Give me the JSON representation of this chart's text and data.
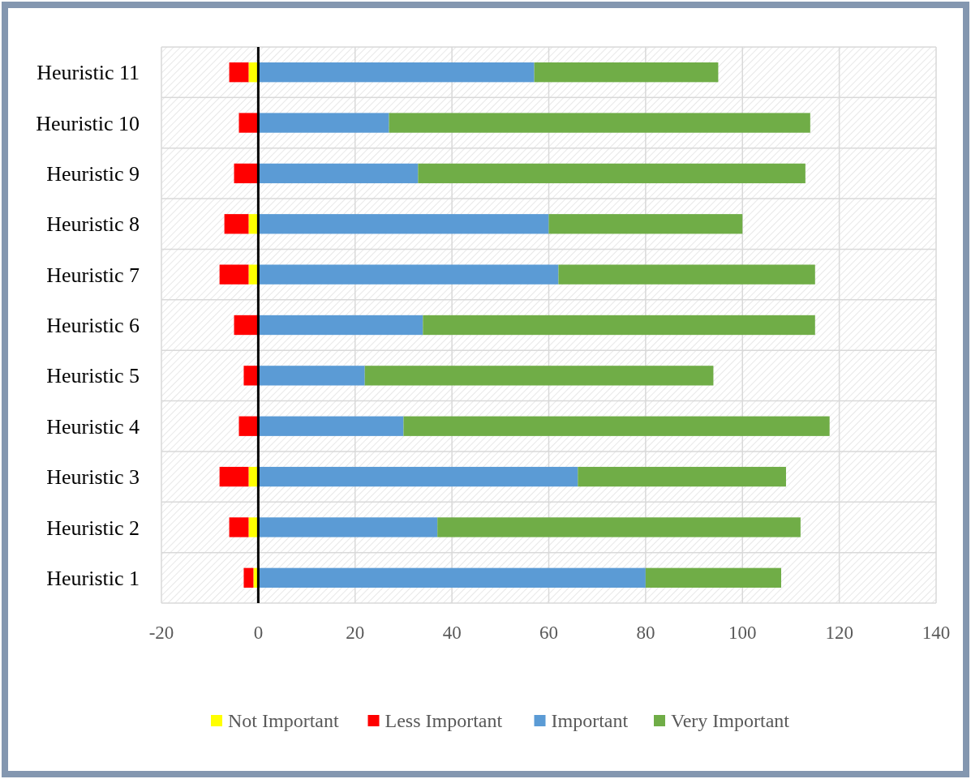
{
  "chart_data": {
    "type": "bar",
    "orientation": "horizontal",
    "stacked": true,
    "categories": [
      "Heuristic 11",
      "Heuristic 10",
      "Heuristic 9",
      "Heuristic 8",
      "Heuristic 7",
      "Heuristic 6",
      "Heuristic 5",
      "Heuristic 4",
      "Heuristic 3",
      "Heuristic 2",
      "Heuristic 1"
    ],
    "series": [
      {
        "name": "Not Important",
        "color": "#ffff00",
        "values": [
          -2,
          0,
          0,
          -2,
          -2,
          0,
          0,
          0,
          -2,
          -2,
          -1
        ]
      },
      {
        "name": "Less Important",
        "color": "#ff0000",
        "values": [
          -4,
          -4,
          -5,
          -5,
          -6,
          -5,
          -3,
          -4,
          -6,
          -4,
          -2
        ]
      },
      {
        "name": "Important",
        "color": "#5b9bd5",
        "values": [
          57,
          27,
          33,
          60,
          62,
          34,
          22,
          30,
          66,
          37,
          80
        ]
      },
      {
        "name": "Very Important",
        "color": "#70ad47",
        "values": [
          38,
          87,
          80,
          40,
          53,
          81,
          72,
          88,
          43,
          75,
          28
        ]
      }
    ],
    "xlim": [
      -20,
      140
    ],
    "xticks": [
      -20,
      0,
      20,
      40,
      60,
      80,
      100,
      120,
      140
    ],
    "grid": true,
    "legend": "bottom"
  }
}
